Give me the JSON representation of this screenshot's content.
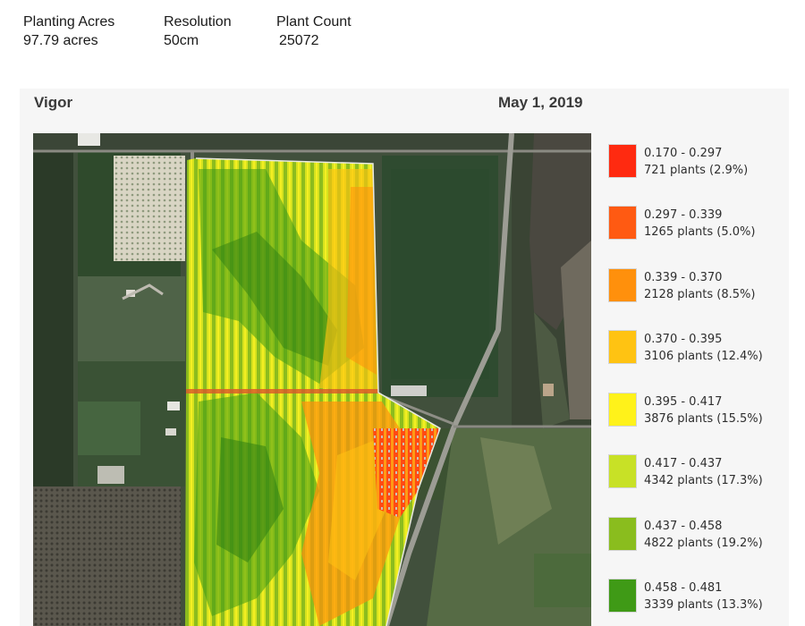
{
  "summary": {
    "planting_acres_label": "Planting Acres",
    "planting_acres_value": "97.79 acres",
    "resolution_label": "Resolution",
    "resolution_value": "50cm",
    "plant_count_label": "Plant Count",
    "plant_count_value": "25072"
  },
  "panel": {
    "title": "Vigor",
    "date": "May 1, 2019"
  },
  "legend": [
    {
      "range": "0.170 - 0.297",
      "count": "721 plants (2.9%)",
      "color": "#ff2a10"
    },
    {
      "range": "0.297 - 0.339",
      "count": "1265 plants (5.0%)",
      "color": "#ff5a12"
    },
    {
      "range": "0.339 - 0.370",
      "count": "2128 plants (8.5%)",
      "color": "#ff900c"
    },
    {
      "range": "0.370 - 0.395",
      "count": "3106 plants (12.4%)",
      "color": "#ffc312"
    },
    {
      "range": "0.395 - 0.417",
      "count": "3876 plants (15.5%)",
      "color": "#fff21a"
    },
    {
      "range": "0.417 - 0.437",
      "count": "4342 plants (17.3%)",
      "color": "#c8e126"
    },
    {
      "range": "0.437 - 0.458",
      "count": "4822 plants (19.2%)",
      "color": "#8abd1e"
    },
    {
      "range": "0.458 - 0.481",
      "count": "3339 plants (13.3%)",
      "color": "#3f9a16"
    }
  ]
}
